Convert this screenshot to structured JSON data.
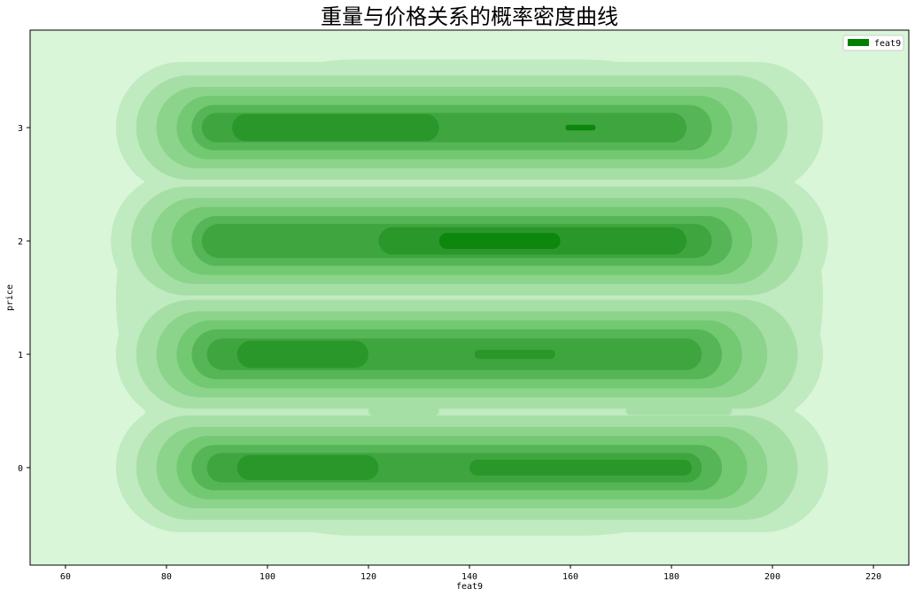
{
  "chart_data": {
    "type": "contour",
    "title": "重量与价格关系的概率密度曲线",
    "xlabel": "feat9",
    "ylabel": "price",
    "xlim": [
      53,
      227
    ],
    "ylim": [
      -0.86,
      3.86
    ],
    "xticks": [
      60,
      80,
      100,
      120,
      140,
      160,
      180,
      200,
      220
    ],
    "yticks": [
      0,
      1,
      2,
      3
    ],
    "grid": false,
    "legend": {
      "position": "top-right",
      "entries": [
        {
          "name": "feat9",
          "color": "#008000"
        }
      ]
    },
    "fill_levels": [
      "#d9f6d9",
      "#c0eac0",
      "#a6dfa6",
      "#8cd48c",
      "#72c972",
      "#56b556",
      "#3fa63f",
      "#2a972a",
      "#0d870d"
    ],
    "contours": [
      {
        "y": 3,
        "bands": [
          {
            "level": 1,
            "x_range": [
              70,
              210
            ],
            "half_height": 0.58
          },
          {
            "level": 2,
            "x_range": [
              74,
              203
            ],
            "half_height": 0.46
          },
          {
            "level": 3,
            "x_range": [
              78,
              197
            ],
            "half_height": 0.36
          },
          {
            "level": 4,
            "x_range": [
              82,
              192
            ],
            "half_height": 0.28
          },
          {
            "level": 5,
            "x_range": [
              85,
              188
            ],
            "half_height": 0.2
          },
          {
            "level": 6,
            "x_range": [
              87,
              183
            ],
            "half_height": 0.13
          },
          {
            "level": 7,
            "x_range": [
              93,
              134
            ],
            "half_height": 0.12
          },
          {
            "level": 8,
            "x_range": [
              159,
              165
            ],
            "half_height": 0.025
          }
        ]
      },
      {
        "y": 2,
        "bands": [
          {
            "level": 1,
            "x_range": [
              69,
              211
            ],
            "half_height": 0.6
          },
          {
            "level": 2,
            "x_range": [
              73,
              206
            ],
            "half_height": 0.48
          },
          {
            "level": 3,
            "x_range": [
              77,
              201
            ],
            "half_height": 0.38
          },
          {
            "level": 4,
            "x_range": [
              81,
              196
            ],
            "half_height": 0.3
          },
          {
            "level": 5,
            "x_range": [
              85,
              192
            ],
            "half_height": 0.22
          },
          {
            "level": 6,
            "x_range": [
              87,
              188
            ],
            "half_height": 0.15
          },
          {
            "level": 7,
            "x_range": [
              122,
              183
            ],
            "half_height": 0.12
          },
          {
            "level": 8,
            "x_range": [
              134,
              158
            ],
            "half_height": 0.07
          }
        ]
      },
      {
        "y": 1,
        "bands": [
          {
            "level": 1,
            "x_range": [
              70,
              210
            ],
            "half_height": 0.6
          },
          {
            "level": 2,
            "x_range": [
              74,
              205
            ],
            "half_height": 0.48
          },
          {
            "level": 3,
            "x_range": [
              78,
              199
            ],
            "half_height": 0.38
          },
          {
            "level": 4,
            "x_range": [
              82,
              194
            ],
            "half_height": 0.3
          },
          {
            "level": 5,
            "x_range": [
              85,
              190
            ],
            "half_height": 0.22
          },
          {
            "level": 6,
            "x_range": [
              88,
              186
            ],
            "half_height": 0.14
          },
          {
            "level": 7,
            "x_range": [
              94,
              120
            ],
            "half_height": 0.12
          },
          {
            "level": 7,
            "x_range": [
              141,
              157
            ],
            "half_height": 0.04
          }
        ]
      },
      {
        "y": 0,
        "bands": [
          {
            "level": 1,
            "x_range": [
              70,
              211
            ],
            "half_height": 0.57
          },
          {
            "level": 2,
            "x_range": [
              74,
              205
            ],
            "half_height": 0.46
          },
          {
            "level": 3,
            "x_range": [
              78,
              199
            ],
            "half_height": 0.36
          },
          {
            "level": 4,
            "x_range": [
              82,
              195
            ],
            "half_height": 0.28
          },
          {
            "level": 5,
            "x_range": [
              85,
              190
            ],
            "half_height": 0.2
          },
          {
            "level": 6,
            "x_range": [
              88,
              186
            ],
            "half_height": 0.13
          },
          {
            "level": 7,
            "x_range": [
              94,
              122
            ],
            "half_height": 0.11
          },
          {
            "level": 7,
            "x_range": [
              140,
              184
            ],
            "half_height": 0.07
          }
        ]
      }
    ],
    "light_patches": [
      {
        "y": 0.5,
        "x_range": [
          120,
          134
        ],
        "half_height": 0.04
      },
      {
        "y": 0.5,
        "x_range": [
          171,
          192
        ],
        "half_height": 0.035
      }
    ]
  }
}
